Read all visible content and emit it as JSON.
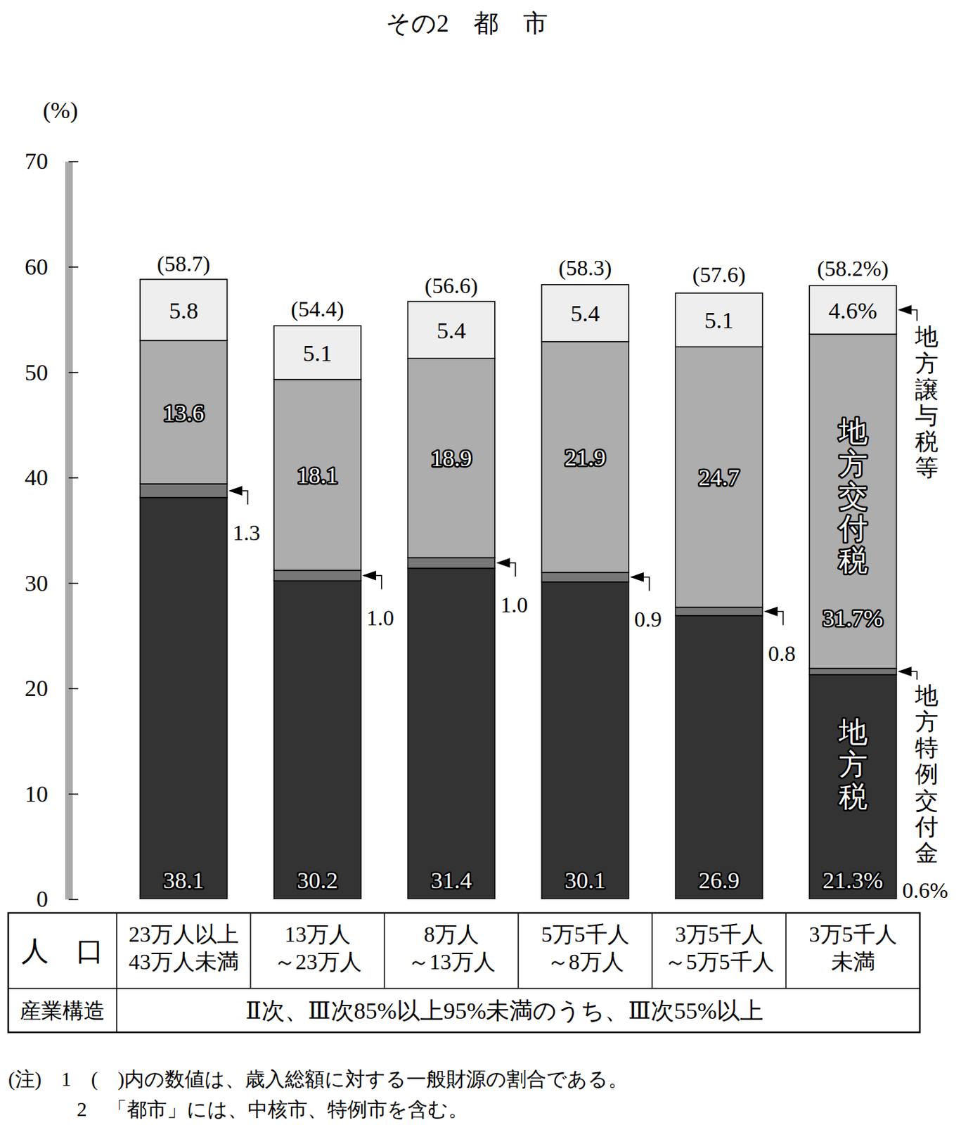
{
  "chart_data": {
    "type": "bar",
    "title": "その2　都　市",
    "y_label": "(%)",
    "stacked": true,
    "data_labels": true,
    "grid": false,
    "ylim": [
      0,
      70
    ],
    "yticks": [
      0,
      10,
      20,
      30,
      40,
      50,
      60,
      70
    ],
    "categories": [
      "23万人以上\n43万人未満",
      "13万人\n～23万人",
      "8万人\n～13万人",
      "5万5千人\n～8万人",
      "3万5千人\n～5万5千人",
      "3万5千人\n未満"
    ],
    "series": [
      {
        "name": "地方税",
        "color": "#333333",
        "values": [
          38.1,
          30.2,
          31.4,
          30.1,
          26.9,
          21.3
        ],
        "value_labels": [
          "38.1",
          "30.2",
          "31.4",
          "30.1",
          "26.9",
          "21.3%"
        ]
      },
      {
        "name": "地方特例交付金",
        "color": "#777777",
        "values": [
          1.3,
          1.0,
          1.0,
          0.9,
          0.8,
          0.6
        ],
        "value_labels": [
          "1.3",
          "1.0",
          "1.0",
          "0.9",
          "0.8",
          "0.6%"
        ]
      },
      {
        "name": "地方交付税",
        "color": "#adadad",
        "values": [
          13.6,
          18.1,
          18.9,
          21.9,
          24.7,
          31.7
        ],
        "value_labels": [
          "13.6",
          "18.1",
          "18.9",
          "21.9",
          "24.7",
          "31.7%"
        ]
      },
      {
        "name": "地方譲与税等",
        "color": "#eeeeee",
        "values": [
          5.8,
          5.1,
          5.4,
          5.4,
          5.1,
          4.6
        ],
        "value_labels": [
          "5.8",
          "5.1",
          "5.4",
          "5.4",
          "5.1",
          "4.6%"
        ]
      }
    ],
    "totals": [
      58.7,
      54.4,
      56.6,
      58.3,
      57.6,
      58.2
    ],
    "total_labels": [
      "(58.7)",
      "(54.4)",
      "(56.6)",
      "(58.3)",
      "(57.6)",
      "(58.2%)"
    ],
    "table": {
      "row_labels": [
        "人　口",
        "産業構造"
      ],
      "industry_structure": "Ⅱ次、Ⅲ次85%以上95%未満のうち、Ⅲ次55%以上"
    },
    "notes": [
      "(注)　1　(　)内の数値は、歳入総額に対する一般財源の割合である。",
      "2　「都市」には、中核市、特例市を含む。"
    ]
  }
}
